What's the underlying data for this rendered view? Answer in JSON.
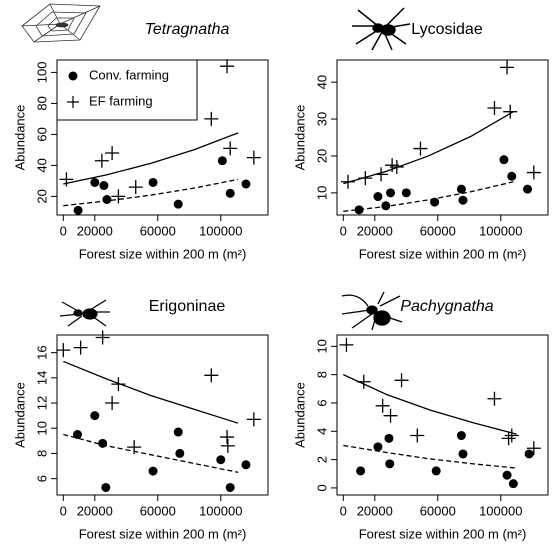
{
  "chart_data": [
    {
      "type": "scatter",
      "title": "Tetragnatha",
      "title_italic": true,
      "xlabel": "Forest size within 200 m (m²)",
      "ylabel": "Abundance",
      "xlim": [
        -4000,
        130000
      ],
      "xticks": [
        0,
        20000,
        60000,
        100000
      ],
      "ylim": [
        8,
        108
      ],
      "yticks": [
        20,
        40,
        60,
        80,
        100
      ],
      "legend": "topleft",
      "series": [
        {
          "name": "Conv. farming",
          "marker": "dot",
          "color": "#000000",
          "x": [
            9400,
            20000,
            25800,
            27700,
            57000,
            73000,
            101000,
            106000,
            116000
          ],
          "values": [
            11,
            29,
            27,
            18,
            29,
            15,
            43,
            22,
            28
          ]
        },
        {
          "name": "EF farming",
          "marker": "plus",
          "color": "#000000",
          "x": [
            2000,
            24500,
            31000,
            35000,
            46000,
            94000,
            104000,
            106000,
            121000
          ],
          "values": [
            31,
            43,
            48,
            20,
            26,
            70,
            104,
            51,
            45
          ]
        }
      ],
      "fits": [
        {
          "dash": false,
          "x": [
            0,
            27750,
            55500,
            83250,
            111000
          ],
          "values": [
            28,
            34,
            41.3,
            50.2,
            61
          ]
        },
        {
          "dash": true,
          "x": [
            0,
            27750,
            55500,
            83250,
            111000
          ],
          "values": [
            14,
            17.1,
            20.8,
            25.4,
            31
          ]
        }
      ]
    },
    {
      "type": "scatter",
      "title": "Lycosidae",
      "title_italic": false,
      "xlabel": "Forest size within 200 m (m²)",
      "ylabel": "Abundance",
      "xlim": [
        -4000,
        130000
      ],
      "xticks": [
        0,
        20000,
        60000,
        100000
      ],
      "ylim": [
        4,
        46
      ],
      "yticks": [
        10,
        20,
        30,
        40
      ],
      "series": [
        {
          "name": "Conv. farming",
          "marker": "dot",
          "color": "#000000",
          "x": [
            10000,
            22000,
            27000,
            30000,
            40000,
            58000,
            75000,
            76000,
            102000,
            107000,
            117000
          ],
          "values": [
            5.4,
            9,
            6.5,
            10,
            10,
            7.5,
            11,
            8,
            19,
            14.5,
            11
          ]
        },
        {
          "name": "EF farming",
          "marker": "plus",
          "color": "#000000",
          "x": [
            3000,
            14000,
            24000,
            31000,
            34000,
            49000,
            96000,
            104000,
            106000,
            121000
          ],
          "values": [
            13,
            14,
            15,
            17.5,
            17,
            22,
            33,
            44,
            32,
            15.5
          ]
        }
      ],
      "fits": [
        {
          "dash": false,
          "x": [
            0,
            27000,
            54000,
            81000,
            108000
          ],
          "values": [
            12.5,
            15.8,
            20,
            25.3,
            32
          ]
        },
        {
          "dash": true,
          "x": [
            0,
            27000,
            54000,
            81000,
            108000
          ],
          "values": [
            5,
            6.3,
            8.1,
            10.3,
            13
          ]
        }
      ]
    },
    {
      "type": "scatter",
      "title": "Erigoninae",
      "title_italic": false,
      "xlabel": "Forest size within 200 m (m²)",
      "ylabel": "Abundance",
      "xlim": [
        -4000,
        130000
      ],
      "xticks": [
        0,
        20000,
        60000,
        100000
      ],
      "ylim": [
        4.7,
        17.4
      ],
      "yticks": [
        6,
        8,
        10,
        12,
        14,
        16
      ],
      "series": [
        {
          "name": "Conv. farming",
          "marker": "dot",
          "color": "#000000",
          "x": [
            9000,
            20000,
            25000,
            27000,
            57000,
            73000,
            74000,
            100000,
            106000,
            116000
          ],
          "values": [
            9.5,
            11,
            8.8,
            5.3,
            6.6,
            9.7,
            8,
            7.5,
            5.3,
            7.1
          ]
        },
        {
          "name": "EF farming",
          "marker": "plus",
          "color": "#000000",
          "x": [
            0,
            11000,
            25000,
            31000,
            35000,
            45000,
            94000,
            104000,
            104500,
            121000
          ],
          "values": [
            16.2,
            16.4,
            17.2,
            12,
            13.5,
            8.5,
            14.2,
            9.3,
            8.6,
            10.7
          ]
        }
      ],
      "fits": [
        {
          "dash": false,
          "x": [
            0,
            27750,
            55500,
            83250,
            111000
          ],
          "values": [
            15.3,
            13.9,
            12.6,
            11.5,
            10.4
          ]
        },
        {
          "dash": true,
          "x": [
            0,
            27750,
            55500,
            83250,
            111000
          ],
          "values": [
            9.5,
            8.6,
            7.9,
            7.2,
            6.5
          ]
        }
      ]
    },
    {
      "type": "scatter",
      "title": "Pachygnatha",
      "title_italic": true,
      "xlabel": "Forest size within 200 m (m²)",
      "ylabel": "Abundance",
      "xlim": [
        -4000,
        130000
      ],
      "xticks": [
        0,
        20000,
        60000,
        100000
      ],
      "ylim": [
        -0.5,
        10.8
      ],
      "yticks": [
        0,
        2,
        4,
        6,
        8,
        10
      ],
      "series": [
        {
          "name": "Conv. farming",
          "marker": "dot",
          "color": "#000000",
          "x": [
            11000,
            22000,
            29000,
            29500,
            59000,
            75000,
            76000,
            104000,
            108000,
            118000
          ],
          "values": [
            1.2,
            2.9,
            3.5,
            1.7,
            1.2,
            3.7,
            2.4,
            0.9,
            0.3,
            2.4
          ]
        },
        {
          "name": "EF farming",
          "marker": "plus",
          "color": "#000000",
          "x": [
            2000,
            13000,
            25000,
            30000,
            37000,
            47000,
            96000,
            105000,
            107000,
            121000
          ],
          "values": [
            10.1,
            7.5,
            5.8,
            5.1,
            7.6,
            3.7,
            6.3,
            3.5,
            3.7,
            2.8
          ]
        }
      ],
      "fits": [
        {
          "dash": false,
          "x": [
            0,
            27500,
            55000,
            82500,
            110000
          ],
          "values": [
            8,
            6.6,
            5.5,
            4.6,
            3.8
          ]
        },
        {
          "dash": true,
          "x": [
            0,
            27500,
            55000,
            82500,
            110000
          ],
          "values": [
            3,
            2.5,
            2.05,
            1.7,
            1.4
          ]
        }
      ]
    }
  ]
}
